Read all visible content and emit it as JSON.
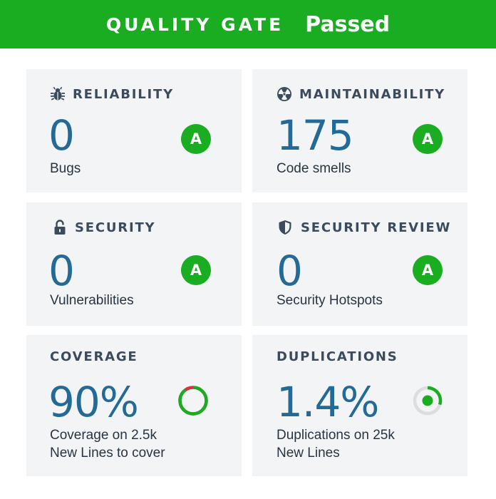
{
  "header": {
    "label": "QUALITY GATE",
    "status": "Passed"
  },
  "colors": {
    "pass_green": "#1aad22",
    "value_blue": "#236a97",
    "title_gray": "#3b4b5c",
    "card_bg": "#f3f4f6",
    "coverage_uncovered": "#d4333f"
  },
  "cards": {
    "reliability": {
      "title": "RELIABILITY",
      "icon": "bug-icon",
      "value": "0",
      "caption": "Bugs",
      "grade": "A"
    },
    "maintainability": {
      "title": "MAINTAINABILITY",
      "icon": "radioactive-icon",
      "value": "175",
      "caption": "Code smells",
      "grade": "A"
    },
    "security": {
      "title": "SECURITY",
      "icon": "unlock-icon",
      "value": "0",
      "caption": "Vulnerabilities",
      "grade": "A"
    },
    "security_review": {
      "title": "SECURITY REVIEW",
      "icon": "shield-icon",
      "value": "0",
      "caption": "Security Hotspots",
      "grade": "A"
    },
    "coverage": {
      "title": "COVERAGE",
      "value": "90%",
      "caption_line1": "Coverage on 2.5k",
      "caption_line2": "New Lines to cover",
      "ring_fraction": 0.9
    },
    "duplications": {
      "title": "DUPLICATIONS",
      "value": "1.4%",
      "caption_line1": "Duplications on 25k",
      "caption_line2": "New Lines",
      "ring_fraction": 0.3
    }
  }
}
